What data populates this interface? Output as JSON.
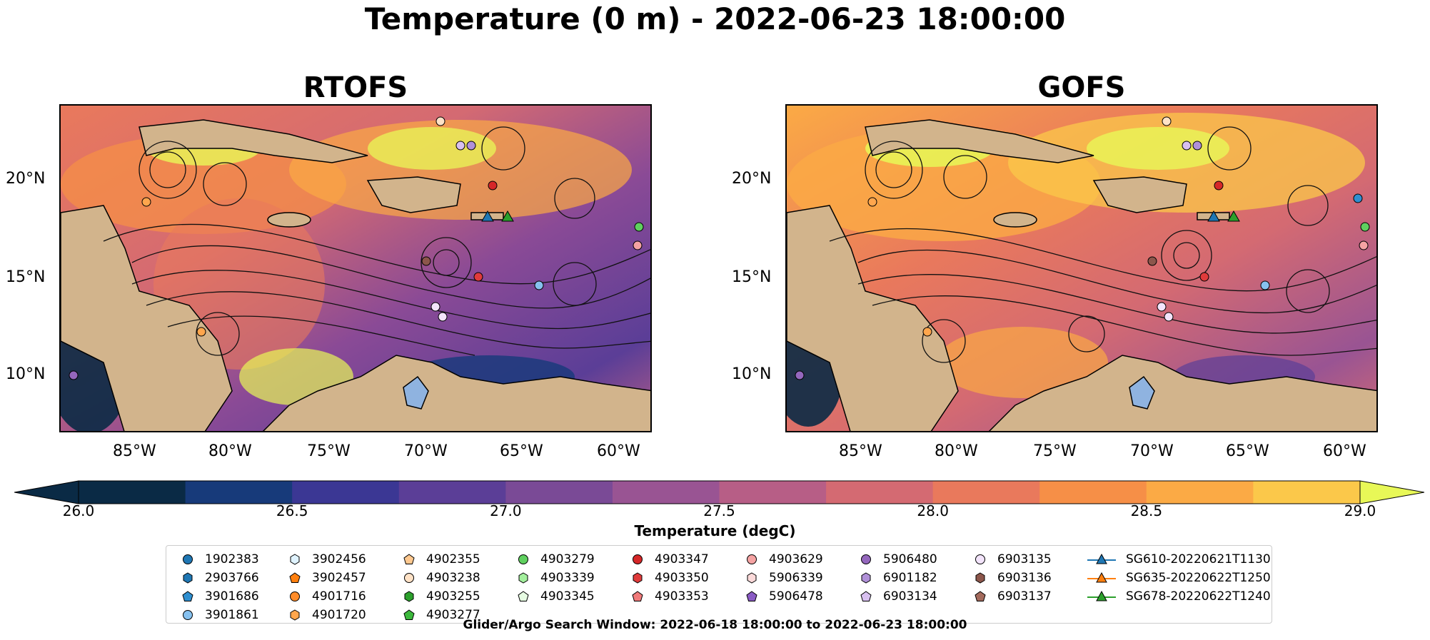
{
  "title": "Temperature (0 m) - 2022-06-23 18:00:00",
  "panels": [
    {
      "title": "RTOFS"
    },
    {
      "title": "GOFS"
    }
  ],
  "axes": {
    "lon_labels": [
      "85°W",
      "80°W",
      "75°W",
      "70°W",
      "65°W",
      "60°W"
    ],
    "lat_labels": [
      "20°N",
      "15°N",
      "10°N"
    ]
  },
  "colorbar": {
    "title": "Temperature (degC)",
    "tick_labels": [
      "26.0",
      "26.5",
      "27.0",
      "27.5",
      "28.0",
      "28.5",
      "29.0"
    ],
    "colors": [
      "#0a2a45",
      "#173a7a",
      "#3b3794",
      "#5b3e97",
      "#7a4a96",
      "#995493",
      "#b75e86",
      "#d46a72",
      "#e9795c",
      "#f68f47",
      "#fbaa45",
      "#fbc84a",
      "#e8f857"
    ]
  },
  "legend": {
    "columns": [
      [
        {
          "label": "1902383",
          "marker": "circle",
          "color": "#1f77b4"
        },
        {
          "label": "2903766",
          "marker": "hexagon",
          "color": "#1f77b4"
        },
        {
          "label": "3901686",
          "marker": "pentagon",
          "color": "#2f8fd0"
        },
        {
          "label": "3901861",
          "marker": "circle",
          "color": "#86c1ef"
        }
      ],
      [
        {
          "label": "3902456",
          "marker": "hexagon",
          "color": "#dff3ff"
        },
        {
          "label": "3902457",
          "marker": "pentagon",
          "color": "#ff7f0e"
        },
        {
          "label": "4901716",
          "marker": "circle",
          "color": "#ff8c2a"
        },
        {
          "label": "4901720",
          "marker": "hexagon",
          "color": "#ffa64d"
        }
      ],
      [
        {
          "label": "4902355",
          "marker": "pentagon",
          "color": "#ffc88f"
        },
        {
          "label": "4903238",
          "marker": "circle",
          "color": "#ffe2c6"
        },
        {
          "label": "4903255",
          "marker": "hexagon",
          "color": "#2ca02c"
        },
        {
          "label": "4903277",
          "marker": "pentagon",
          "color": "#3cb83c"
        }
      ],
      [
        {
          "label": "4903279",
          "marker": "circle",
          "color": "#5fd05f"
        },
        {
          "label": "4903339",
          "marker": "hexagon",
          "color": "#a3ef9d"
        },
        {
          "label": "4903345",
          "marker": "pentagon",
          "color": "#e6fbe2"
        }
      ],
      [
        {
          "label": "4903347",
          "marker": "circle",
          "color": "#d62728"
        },
        {
          "label": "4903350",
          "marker": "hexagon",
          "color": "#e03b3b"
        },
        {
          "label": "4903353",
          "marker": "pentagon",
          "color": "#f07a7a"
        }
      ],
      [
        {
          "label": "4903629",
          "marker": "circle",
          "color": "#f5a3a3"
        },
        {
          "label": "5906339",
          "marker": "hexagon",
          "color": "#fcdada"
        },
        {
          "label": "5906478",
          "marker": "pentagon",
          "color": "#8a5bc4"
        }
      ],
      [
        {
          "label": "5906480",
          "marker": "circle",
          "color": "#9467bd"
        },
        {
          "label": "6901182",
          "marker": "hexagon",
          "color": "#b090d8"
        },
        {
          "label": "6903134",
          "marker": "pentagon",
          "color": "#d8c0f0"
        }
      ],
      [
        {
          "label": "6903135",
          "marker": "circle",
          "color": "#f3e4fb"
        },
        {
          "label": "6903136",
          "marker": "hexagon",
          "color": "#8c564b"
        },
        {
          "label": "6903137",
          "marker": "pentagon",
          "color": "#a36a5c"
        }
      ],
      [
        {
          "label": "SG610-20220621T1130",
          "marker": "triangle",
          "color": "#1f77b4"
        },
        {
          "label": "SG635-20220622T1250",
          "marker": "triangle",
          "color": "#ff7f0e"
        },
        {
          "label": "SG678-20220622T1240",
          "marker": "triangle",
          "color": "#2ca02c"
        }
      ]
    ]
  },
  "footer": "Glider/Argo Search Window: 2022-06-18 18:00:00 to 2022-06-23 18:00:00",
  "colors": {
    "land": "#d2b48c",
    "lake": "#8fb3e0",
    "river": "#9bb3c9"
  }
}
